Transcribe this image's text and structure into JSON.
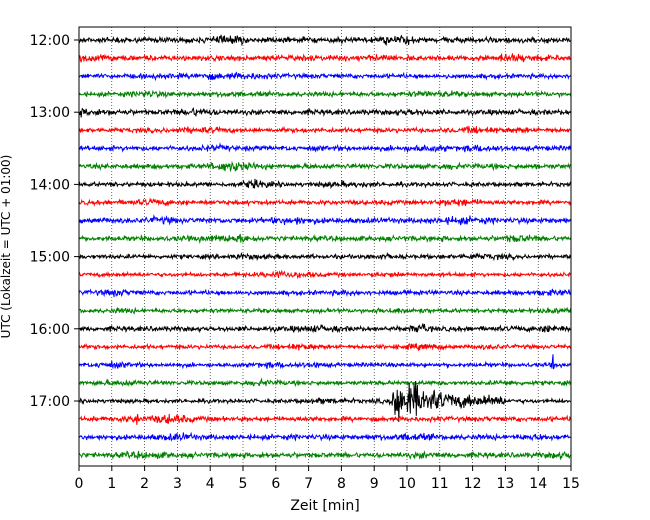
{
  "chart_data": {
    "type": "line",
    "chart_kind": "helicorder seismogram",
    "title": "",
    "xlabel": "Zeit  [min]",
    "ylabel": "UTC (Lokalzeit = UTC + 01:00)",
    "xlim": [
      0,
      15
    ],
    "x_ticks": [
      "0",
      "1",
      "2",
      "3",
      "4",
      "5",
      "6",
      "7",
      "8",
      "9",
      "10",
      "11",
      "12",
      "13",
      "14",
      "15"
    ],
    "y_ticks": [
      "12:00",
      "13:00",
      "14:00",
      "15:00",
      "16:00",
      "17:00"
    ],
    "grid": "vertical dotted lines at each minute",
    "line_interval_minutes": 15,
    "colors": [
      "#000000",
      "#ff0000",
      "#0000ff",
      "#008000"
    ],
    "trace_start_times": [
      "12:00",
      "12:15",
      "12:30",
      "12:45",
      "13:00",
      "13:15",
      "13:30",
      "13:45",
      "14:00",
      "14:15",
      "14:30",
      "14:45",
      "15:00",
      "15:15",
      "15:30",
      "15:45",
      "16:00",
      "16:15",
      "16:30",
      "16:45",
      "17:00",
      "17:15",
      "17:30",
      "17:45"
    ],
    "events": [
      {
        "trace_start": "17:00",
        "onset_minute": 9.5,
        "end_minute": 13.0,
        "type": "earthquake"
      },
      {
        "trace_start": "17:15",
        "minute": 1.75,
        "type": "spike"
      },
      {
        "trace_start": "16:30",
        "minute": 14.45,
        "type": "spike"
      },
      {
        "trace_start": "16:00",
        "minute": 10.5,
        "type": "spike"
      }
    ]
  }
}
